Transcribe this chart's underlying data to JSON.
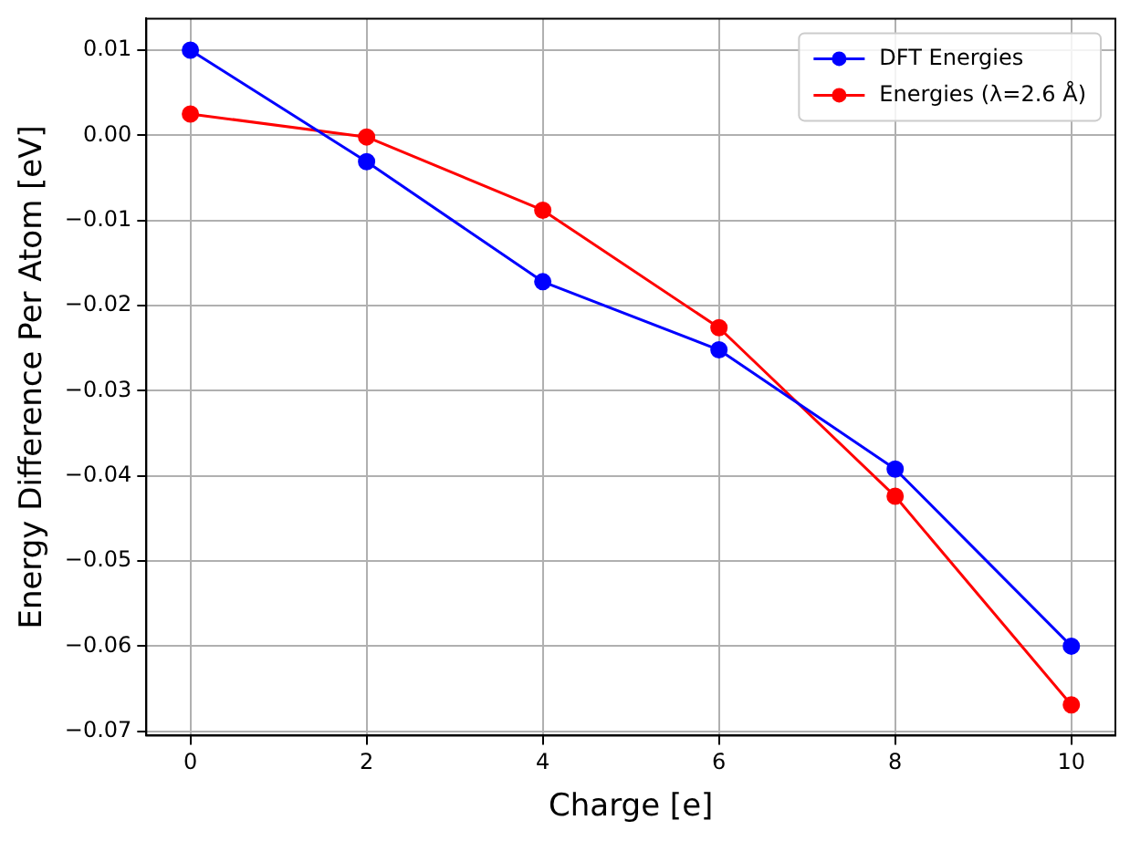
{
  "chart_data": {
    "type": "line",
    "xlabel": "Charge [e]",
    "ylabel": "Energy Difference Per Atom [eV]",
    "x": [
      0,
      2,
      4,
      6,
      8,
      10
    ],
    "series": [
      {
        "name": "DFT Energies",
        "color": "#0000ff",
        "values": [
          0.01,
          -0.0031,
          -0.0172,
          -0.0252,
          -0.0392,
          -0.06
        ]
      },
      {
        "name": "Energies (λ=2.6 Å)",
        "color": "#ff0000",
        "values": [
          0.0025,
          -0.0002,
          -0.0088,
          -0.0226,
          -0.0424,
          -0.0669
        ]
      }
    ],
    "xlim": [
      -0.5,
      10.5
    ],
    "xticks": [
      0,
      2,
      4,
      6,
      8,
      10
    ],
    "ylim": [
      -0.0705,
      0.0137
    ],
    "yticks": [
      {
        "value": 0.01,
        "label": "0.01"
      },
      {
        "value": 0,
        "label": "0.00"
      },
      {
        "value": -0.01,
        "label": "−0.01"
      },
      {
        "value": -0.02,
        "label": "−0.02"
      },
      {
        "value": -0.03,
        "label": "−0.03"
      },
      {
        "value": -0.04,
        "label": "−0.04"
      },
      {
        "value": -0.05,
        "label": "−0.05"
      },
      {
        "value": -0.06,
        "label": "−0.06"
      },
      {
        "value": -0.07,
        "label": "−0.07"
      }
    ],
    "grid": true,
    "legend": "top right",
    "marker": "circle",
    "line_style": "solid"
  }
}
